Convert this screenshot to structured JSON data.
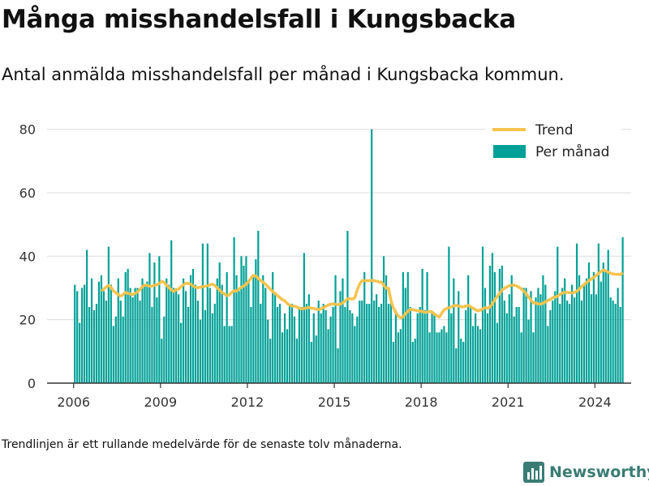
{
  "title": "Många misshandelsfall i Kungsbacka",
  "subtitle": "Antal anmälda misshandelsfall per månad i Kungsbacka kommun.",
  "footnote": "Trendlinjen är ett rullande medelvärde för de senaste tolv månaderna.",
  "brand": {
    "name": "Newsworthy",
    "color": "#3a7c74"
  },
  "chart_data": {
    "type": "bar",
    "x_start": "2006-01",
    "x_end": "2024-06",
    "xlim": [
      "2005-02",
      "2025-04"
    ],
    "x_ticks": [
      "2006",
      "2009",
      "2012",
      "2015",
      "2018",
      "2021",
      "2024"
    ],
    "ylim": [
      0,
      85
    ],
    "y_ticks": [
      "0",
      "20",
      "40",
      "60",
      "80"
    ],
    "grid": true,
    "legend_position": "top-right",
    "colors": {
      "bars": "#00a096",
      "trend": "#f7c34e",
      "grid": "#dcdcdc",
      "axis": "#333333"
    },
    "series": [
      {
        "name": "Per månad",
        "values": [
          31,
          29,
          19,
          30,
          31,
          42,
          24,
          33,
          23,
          25,
          32,
          34,
          29,
          26,
          43,
          31,
          18,
          21,
          33,
          26,
          21,
          35,
          36,
          30,
          27,
          30,
          30,
          26,
          33,
          31,
          32,
          41,
          24,
          38,
          27,
          40,
          14,
          21,
          33,
          31,
          45,
          30,
          29,
          28,
          19,
          33,
          29,
          24,
          34,
          36,
          31,
          26,
          20,
          44,
          23,
          44,
          30,
          22,
          25,
          33,
          38,
          31,
          18,
          35,
          18,
          18,
          46,
          34,
          29,
          40,
          37,
          40,
          32,
          24,
          34,
          39,
          48,
          25,
          34,
          30,
          20,
          14,
          35,
          28,
          24,
          25,
          16,
          22,
          17,
          25,
          25,
          21,
          14,
          24,
          24,
          41,
          25,
          28,
          13,
          22,
          15,
          26,
          22,
          25,
          23,
          17,
          21,
          24,
          34,
          11,
          29,
          33,
          24,
          48,
          23,
          22,
          18,
          21,
          26,
          26,
          35,
          25,
          25,
          80,
          26,
          28,
          24,
          25,
          40,
          34,
          25,
          27,
          13,
          23,
          16,
          17,
          35,
          30,
          35,
          24,
          13,
          14,
          22,
          24,
          36,
          23,
          35,
          16,
          22,
          22,
          16,
          16,
          17,
          18,
          16,
          43,
          22,
          33,
          11,
          29,
          14,
          13,
          23,
          34,
          24,
          18,
          22,
          18,
          17,
          43,
          30,
          22,
          37,
          41,
          35,
          19,
          36,
          37,
          26,
          22,
          28,
          34,
          21,
          24,
          24,
          16,
          30,
          30,
          20,
          29,
          16,
          27,
          30,
          28,
          34,
          31,
          18,
          23,
          26,
          29,
          43,
          25,
          30,
          33,
          26,
          25,
          31,
          27,
          44,
          34,
          26,
          31,
          33,
          38,
          28,
          35,
          28,
          44,
          32,
          38,
          35,
          42,
          27,
          26,
          25,
          30,
          24,
          46
        ]
      },
      {
        "name": "Trend",
        "x_start": "2006-12",
        "values": [
          29.0,
          29.6,
          30.3,
          30.8,
          30.2,
          29.1,
          28.5,
          27.9,
          27.4,
          27.9,
          28.6,
          28.3,
          28.1,
          27.9,
          28.3,
          28.7,
          29.5,
          30.4,
          30.9,
          30.8,
          30.5,
          30.6,
          30.8,
          31.0,
          31.4,
          32.1,
          31.7,
          30.8,
          30.1,
          29.4,
          28.9,
          29.5,
          29.6,
          30.4,
          31.0,
          31.5,
          31.4,
          31.2,
          30.6,
          30.2,
          30.1,
          30.2,
          30.4,
          30.5,
          30.7,
          31.0,
          31.2,
          30.8,
          30.0,
          29.3,
          28.6,
          28.1,
          27.6,
          27.8,
          28.6,
          29.1,
          29.0,
          29.6,
          30.2,
          30.6,
          31.2,
          32.0,
          33.1,
          34.0,
          33.8,
          33.0,
          32.4,
          31.8,
          31.2,
          30.4,
          29.6,
          28.9,
          28.2,
          27.6,
          26.9,
          26.3,
          25.9,
          25.1,
          24.6,
          24.3,
          24.2,
          24.0,
          23.6,
          23.4,
          23.5,
          23.7,
          23.9,
          23.6,
          23.5,
          23.3,
          23.2,
          23.4,
          23.8,
          24.2,
          24.6,
          24.9,
          25.0,
          24.8,
          24.7,
          24.9,
          25.3,
          25.9,
          26.6,
          26.6,
          26.5,
          26.9,
          29.3,
          31.2,
          32.3,
          32.3,
          32.3,
          32.3,
          32.4,
          32.3,
          32.1,
          31.9,
          31.8,
          30.9,
          29.9,
          29.9,
          26.0,
          23.7,
          22.3,
          21.1,
          20.6,
          20.9,
          21.9,
          22.6,
          23.3,
          23.1,
          23.0,
          22.8,
          22.7,
          22.6,
          22.3,
          22.4,
          22.6,
          22.4,
          21.8,
          21.2,
          20.8,
          22.0,
          23.1,
          23.5,
          23.8,
          24.0,
          24.4,
          24.5,
          24.3,
          24.1,
          24.0,
          24.3,
          24.5,
          24.1,
          23.6,
          23.1,
          22.8,
          23.0,
          23.4,
          23.8,
          23.6,
          24.0,
          25.0,
          26.3,
          27.3,
          28.3,
          29.3,
          29.9,
          30.3,
          30.7,
          30.8,
          30.9,
          30.6,
          30.2,
          29.7,
          29.0,
          28.2,
          27.1,
          26.1,
          25.3,
          25.2,
          25.0,
          24.9,
          25.2,
          25.6,
          26.0,
          26.4,
          26.9,
          27.1,
          27.4,
          27.9,
          28.4,
          28.6,
          28.6,
          28.5,
          28.4,
          28.6,
          29.0,
          29.6,
          30.4,
          31.1,
          31.7,
          32.3,
          32.8,
          33.3,
          33.9,
          34.6,
          35.2,
          35.6,
          35.4,
          35.0,
          34.6,
          34.4,
          34.3,
          34.3,
          34.2,
          34.8
        ]
      }
    ]
  }
}
